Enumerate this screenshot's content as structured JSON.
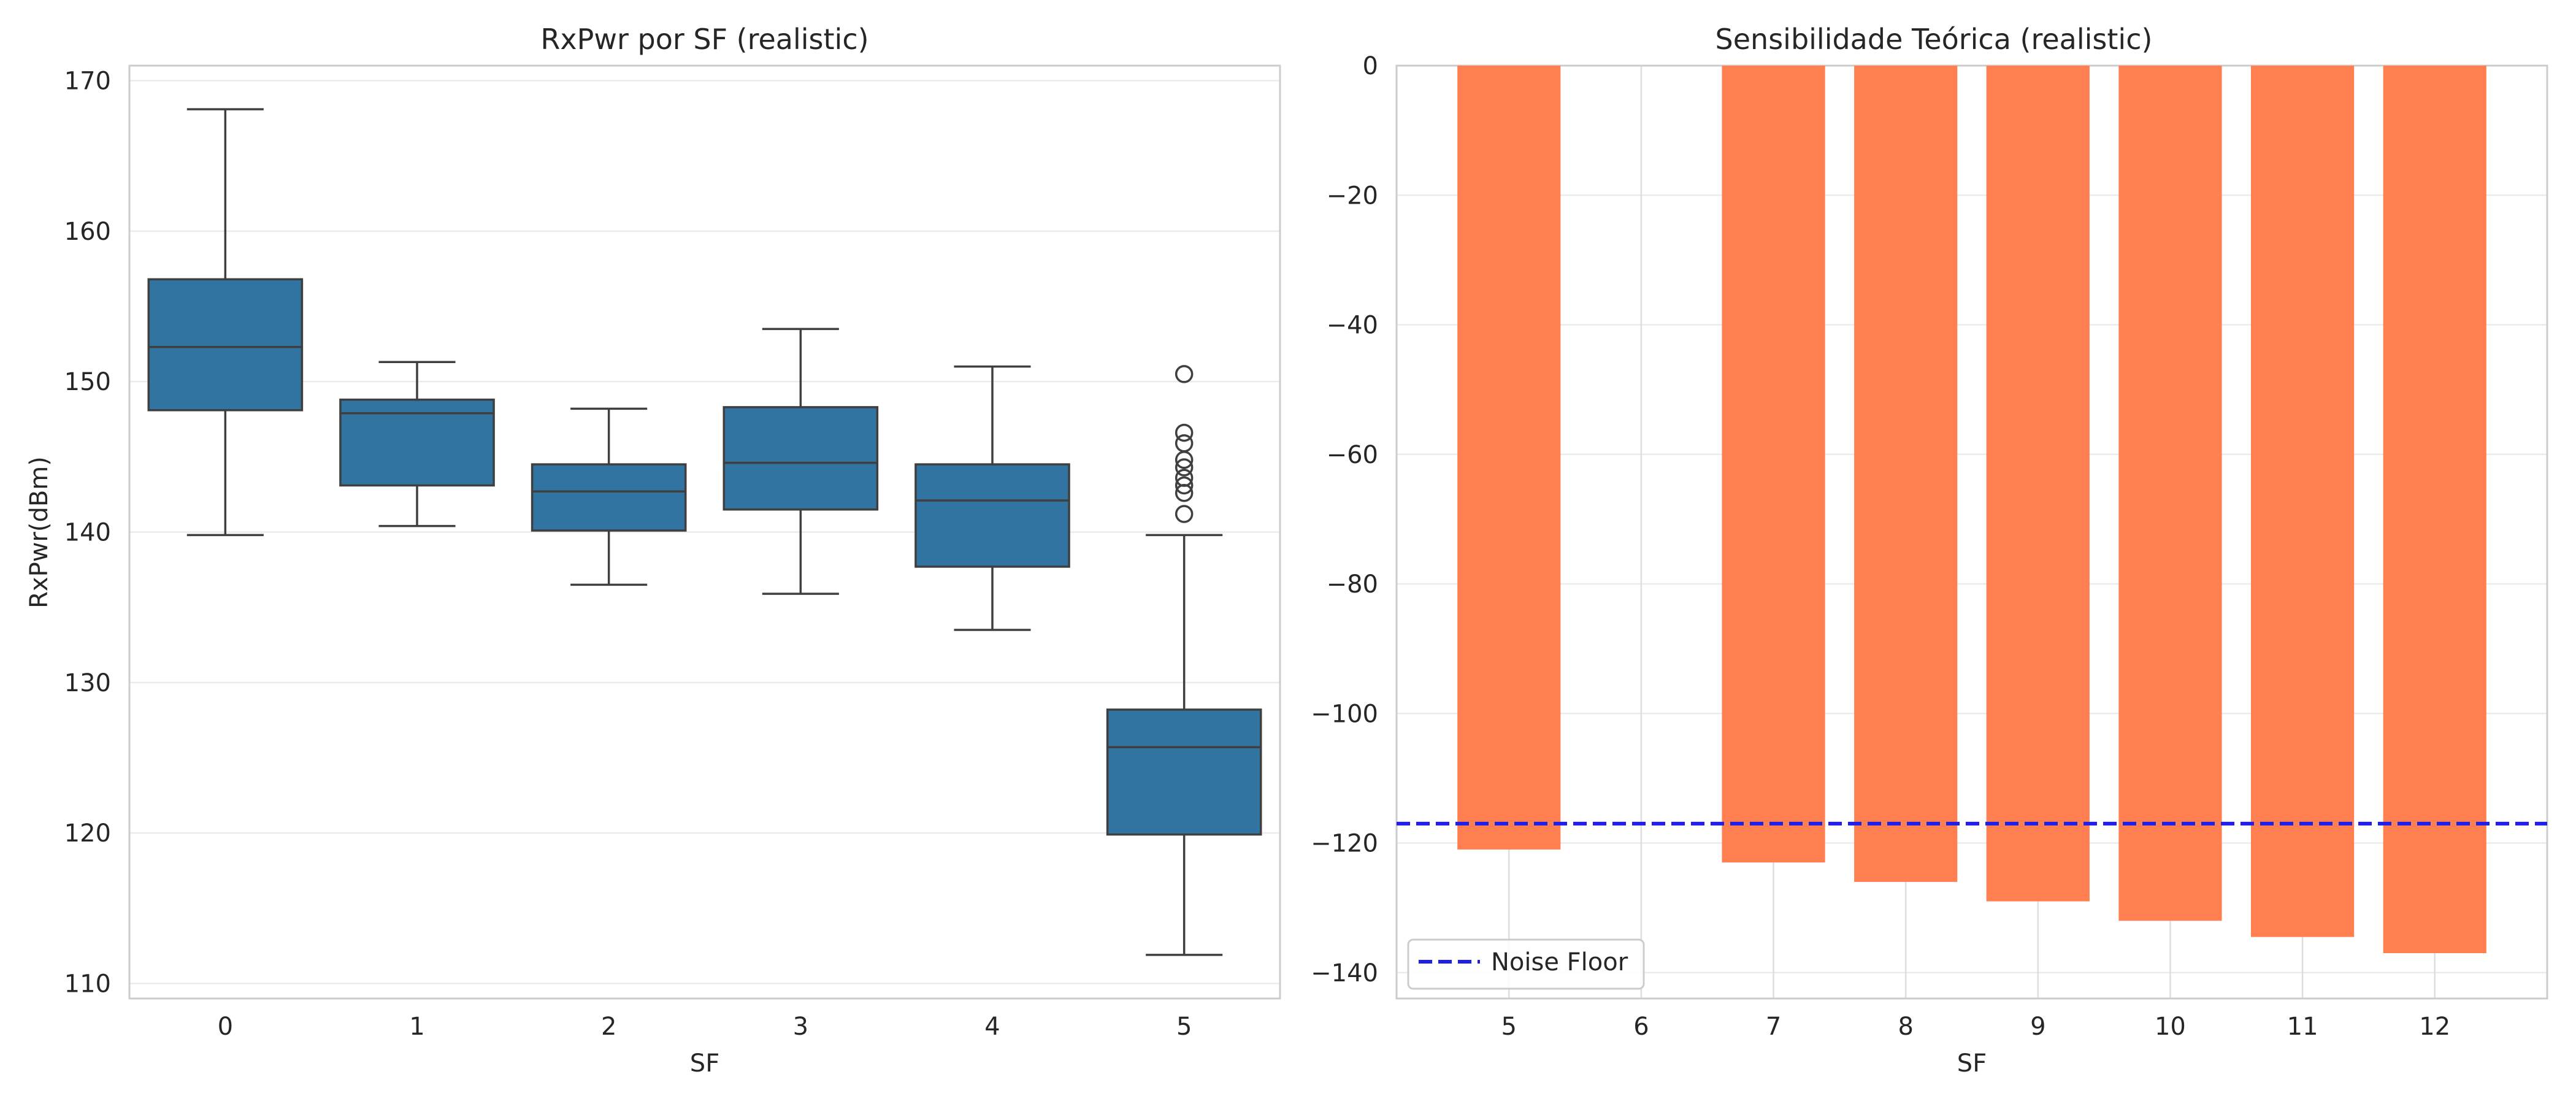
{
  "chart_data": [
    {
      "type": "box",
      "title": "RxPwr por SF (realistic)",
      "xlabel": "SF",
      "ylabel": "RxPwr(dBm)",
      "ylim": [
        109,
        171
      ],
      "yticks": [
        110,
        120,
        130,
        140,
        150,
        160,
        170
      ],
      "categories": [
        "0",
        "1",
        "2",
        "3",
        "4",
        "5"
      ],
      "grid": true,
      "boxes": [
        {
          "category": "0",
          "whisker_low": 139.8,
          "q1": 148.1,
          "median": 152.3,
          "q3": 156.8,
          "whisker_high": 168.1,
          "outliers": []
        },
        {
          "category": "1",
          "whisker_low": 140.4,
          "q1": 143.1,
          "median": 147.9,
          "q3": 148.8,
          "whisker_high": 151.3,
          "outliers": []
        },
        {
          "category": "2",
          "whisker_low": 136.5,
          "q1": 140.1,
          "median": 142.7,
          "q3": 144.5,
          "whisker_high": 148.2,
          "outliers": []
        },
        {
          "category": "3",
          "whisker_low": 135.9,
          "q1": 141.5,
          "median": 144.6,
          "q3": 148.3,
          "whisker_high": 153.5,
          "outliers": []
        },
        {
          "category": "4",
          "whisker_low": 133.5,
          "q1": 137.7,
          "median": 142.1,
          "q3": 144.5,
          "whisker_high": 151.0,
          "outliers": []
        },
        {
          "category": "5",
          "whisker_low": 111.9,
          "q1": 119.9,
          "median": 125.7,
          "q3": 128.2,
          "whisker_high": 139.8,
          "outliers": [
            150.5,
            146.6,
            145.9,
            144.8,
            144.3,
            143.6,
            143.1,
            142.6,
            141.2
          ]
        }
      ],
      "colors": {
        "box": "#3274a1",
        "line": "#3f3f3f"
      }
    },
    {
      "type": "bar",
      "title": "Sensibilidade Teórica (realistic)",
      "xlabel": "SF",
      "ylabel": "",
      "ylim": [
        -144,
        0
      ],
      "yticks": [
        0,
        -20,
        -40,
        -60,
        -80,
        -100,
        -120,
        -140
      ],
      "x_range": [
        4.15,
        12.85
      ],
      "xticks": [
        5,
        6,
        7,
        8,
        9,
        10,
        11,
        12
      ],
      "categories": [
        5,
        7,
        8,
        9,
        10,
        11,
        12
      ],
      "values": [
        -121,
        -123,
        -126,
        -129,
        -132,
        -134.5,
        -137
      ],
      "bar_width": 0.78,
      "grid": true,
      "reference_line": {
        "name": "Noise Floor",
        "value": -117,
        "style": "dashed",
        "color": "#1f1fe6"
      },
      "legend": {
        "position": "lower-left",
        "entries": [
          "Noise Floor"
        ]
      },
      "colors": {
        "bar": "#ff7f50"
      }
    }
  ]
}
